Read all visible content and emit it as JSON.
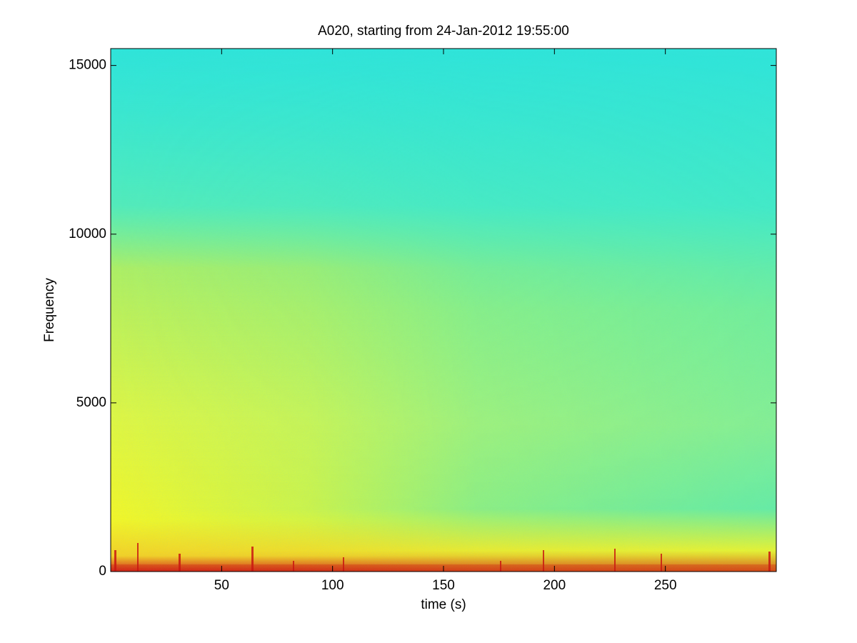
{
  "chart_data": {
    "type": "spectrogram",
    "title": "A020, starting from 24-Jan-2012 19:55:00",
    "xlabel": "time (s)",
    "ylabel": "Frequency",
    "xlim": [
      0,
      300
    ],
    "xticks": [
      50,
      100,
      150,
      200,
      250
    ],
    "ylim": [
      0,
      15500
    ],
    "yticks": [
      0,
      5000,
      10000,
      15000
    ]
  }
}
